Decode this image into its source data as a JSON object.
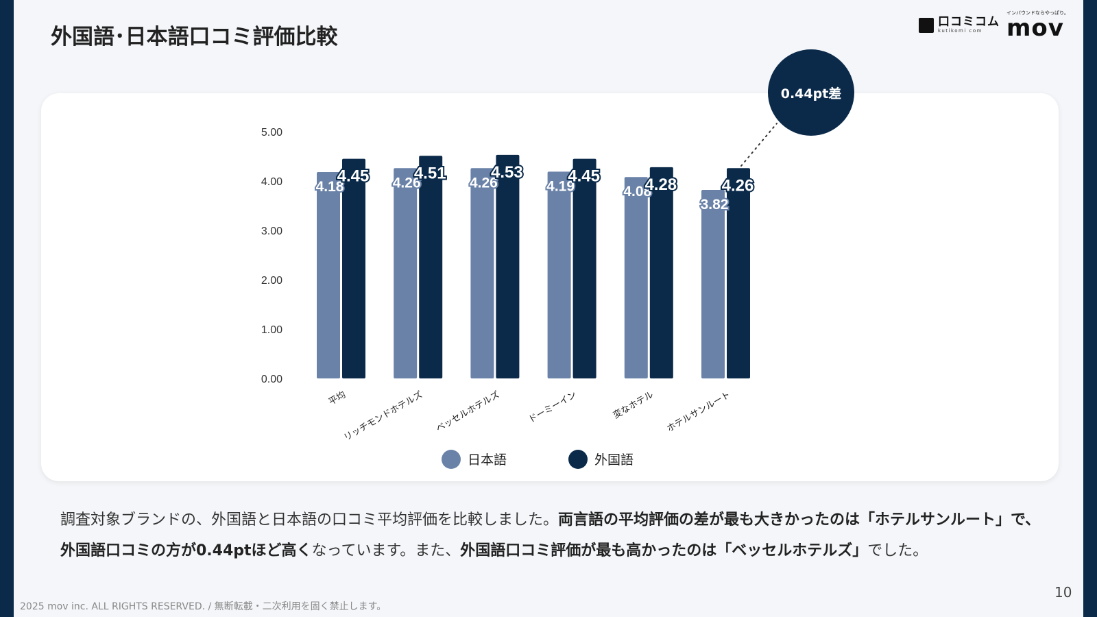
{
  "title": "外国語･日本語口コミ評価比較",
  "logos": {
    "kutikomi": "口コミコム",
    "kutikomi_sub": "kutikomi com",
    "mov_tag": "インバウンドならやっぱり。",
    "mov": "mov"
  },
  "callout": "0.44pt差",
  "chart_data": {
    "type": "bar",
    "categories": [
      "平均",
      "リッチモンドホテルズ",
      "ベッセルホテルズ",
      "ドーミーイン",
      "変なホテル",
      "ホテルサンルート"
    ],
    "series": [
      {
        "name": "日本語",
        "color": "#6a82a8",
        "values": [
          4.18,
          4.26,
          4.26,
          4.19,
          4.08,
          3.82
        ]
      },
      {
        "name": "外国語",
        "color": "#0b2a4a",
        "values": [
          4.45,
          4.51,
          4.53,
          4.45,
          4.28,
          4.26
        ]
      }
    ],
    "ylim": [
      0,
      5
    ],
    "yticks": [
      "0.00",
      "1.00",
      "2.00",
      "3.00",
      "4.00",
      "5.00"
    ],
    "legend": "bottom",
    "grid": false
  },
  "body": {
    "p1": "調査対象ブランドの、外国語と日本語の口コミ平均評価を比較しました。",
    "b1": "両言語の平均評価の差が最も大きかったのは「ホテルサンルート」で、外国語口コミの方が0.44ptほど高く",
    "p2": "なっています。また、",
    "b2": "外国語口コミ評価が最も高かったのは「ベッセルホテルズ」",
    "p3": "でした。"
  },
  "footer": "2025 mov inc. ALL RIGHTS RESERVED. / 無断転載・二次利用を固く禁止します。",
  "page_number": "10"
}
